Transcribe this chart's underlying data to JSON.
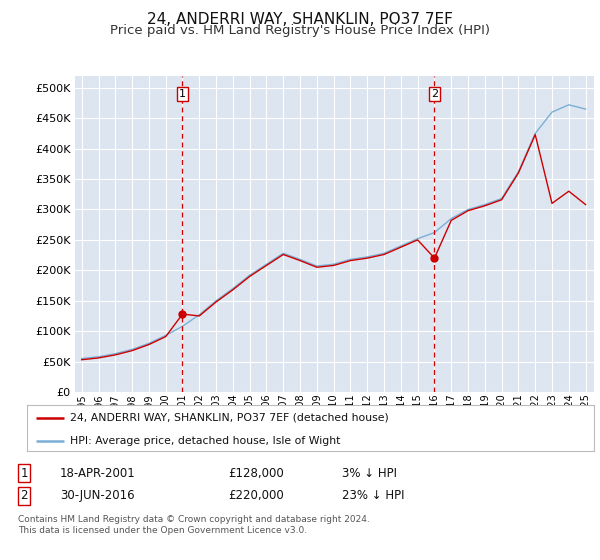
{
  "title": "24, ANDERRI WAY, SHANKLIN, PO37 7EF",
  "subtitle": "Price paid vs. HM Land Registry's House Price Index (HPI)",
  "title_fontsize": 11,
  "subtitle_fontsize": 9.5,
  "bg_color": "#dde6f0",
  "hpi_color": "#7aaed6",
  "price_color": "#cc0000",
  "grid_color": "#ffffff",
  "sale1_year": 2001,
  "sale1_price": 128000,
  "sale2_year": 2016,
  "sale2_price": 220000,
  "sale1_date_str": "18-APR-2001",
  "sale2_date_str": "30-JUN-2016",
  "sale1_price_str": "£128,000",
  "sale2_price_str": "£220,000",
  "sale1_hpi_diff": "3% ↓ HPI",
  "sale2_hpi_diff": "23% ↓ HPI",
  "legend_line1": "24, ANDERRI WAY, SHANKLIN, PO37 7EF (detached house)",
  "legend_line2": "HPI: Average price, detached house, Isle of Wight",
  "footer1": "Contains HM Land Registry data © Crown copyright and database right 2024.",
  "footer2": "This data is licensed under the Open Government Licence v3.0.",
  "ylim_min": 0,
  "ylim_max": 520000,
  "yticks": [
    0,
    50000,
    100000,
    150000,
    200000,
    250000,
    300000,
    350000,
    400000,
    450000,
    500000
  ],
  "hpi_data": [
    55000,
    58000,
    63000,
    70000,
    80000,
    93000,
    108000,
    127000,
    150000,
    170000,
    192000,
    210000,
    228000,
    218000,
    207000,
    210000,
    218000,
    222000,
    228000,
    240000,
    252000,
    262000,
    285000,
    300000,
    308000,
    318000,
    362000,
    425000,
    460000,
    472000,
    465000
  ],
  "price_data": [
    53000,
    56000,
    61000,
    68000,
    78000,
    91000,
    128000,
    125000,
    148000,
    168000,
    190000,
    208000,
    226000,
    216000,
    205000,
    208000,
    216000,
    220000,
    226000,
    238000,
    250000,
    220000,
    282000,
    298000,
    306000,
    316000,
    360000,
    423000,
    310000,
    330000,
    308000
  ]
}
